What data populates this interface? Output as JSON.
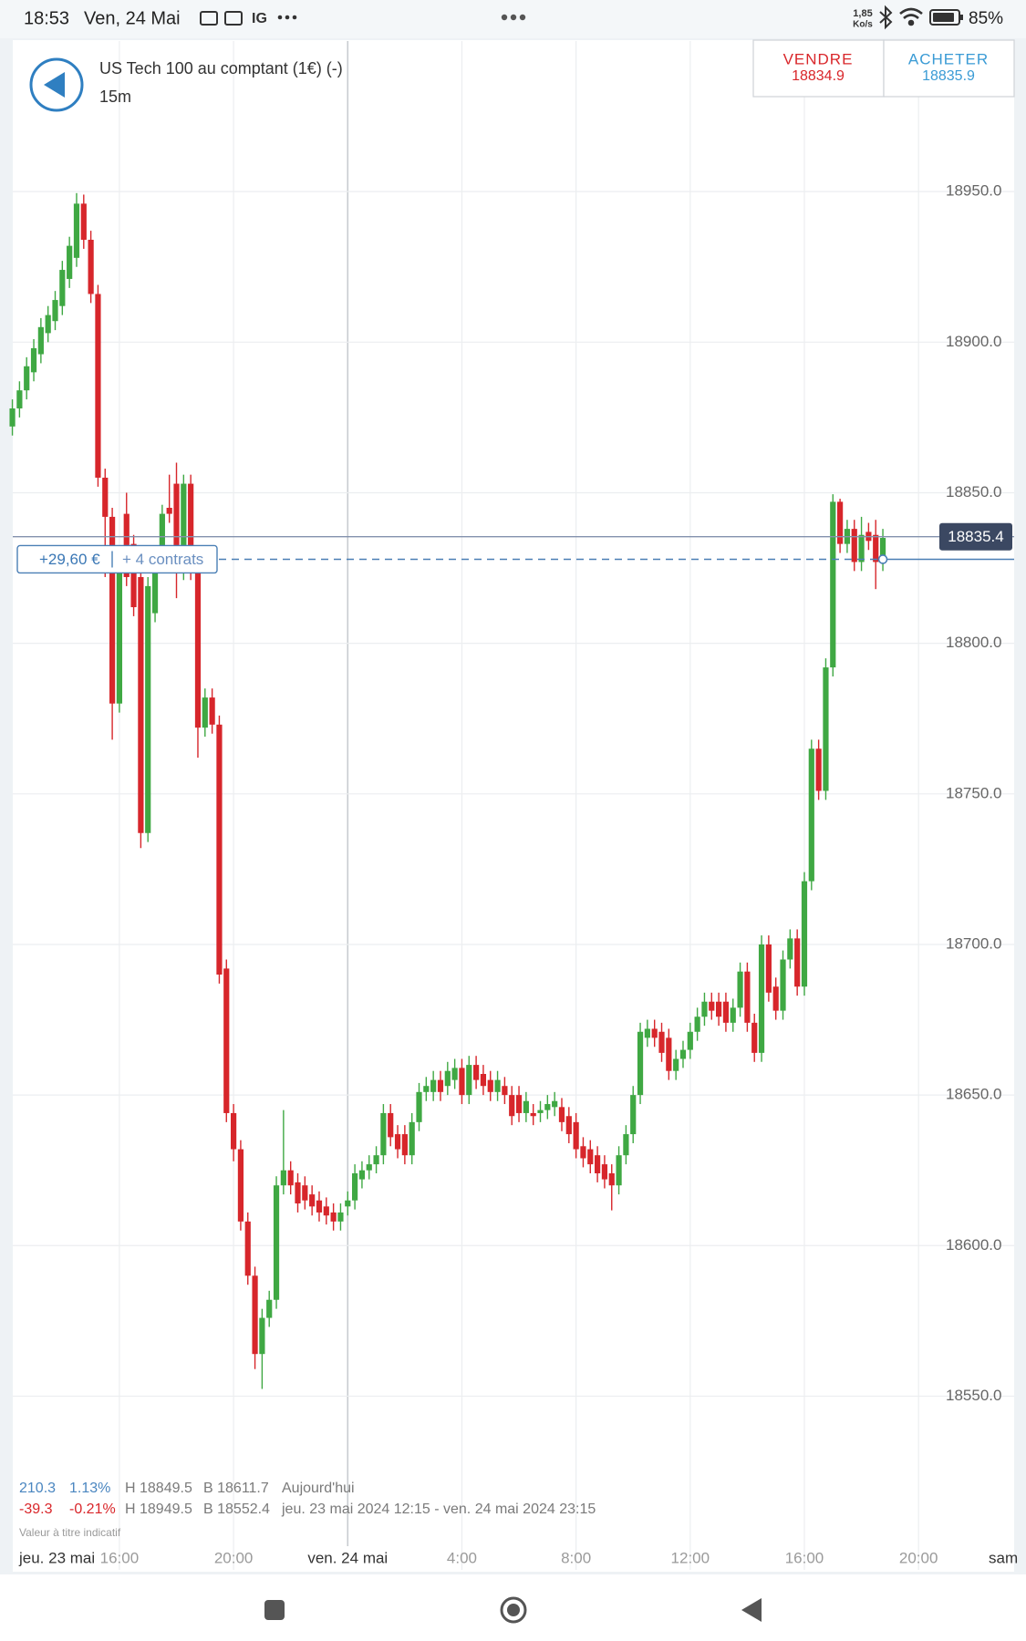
{
  "status_bar": {
    "time": "18:53",
    "date": "Ven, 24 Mai",
    "app": "IG",
    "speed": "1,85",
    "speed_unit": "Ko/s",
    "battery": "85%"
  },
  "header": {
    "instrument": "US Tech 100 au comptant (1€) (-)",
    "timeframe": "15m",
    "sell_label": "VENDRE",
    "sell_price": "18834.9",
    "buy_label": "ACHETER",
    "buy_price": "18835.9"
  },
  "chart_data": {
    "type": "candlestick",
    "up_color": "#3fa843",
    "down_color": "#d7262b",
    "grid": true,
    "xlim": [
      12.2,
      47.35
    ],
    "ylim": [
      18502,
      19000
    ],
    "date_label": "jeu. 23 mai",
    "xticks": [
      {
        "value": 16,
        "label": "16:00"
      },
      {
        "value": 20,
        "label": "20:00"
      },
      {
        "value": 24,
        "label": "ven. 24 mai"
      },
      {
        "value": 28,
        "label": "4:00"
      },
      {
        "value": 32,
        "label": "8:00"
      },
      {
        "value": 36,
        "label": "12:00"
      },
      {
        "value": 40,
        "label": "16:00"
      },
      {
        "value": 44,
        "label": "20:00"
      },
      {
        "value": 48,
        "label": "sam"
      }
    ],
    "yticks": [
      {
        "value": 18550,
        "label": "18550.0"
      },
      {
        "value": 18600,
        "label": "18600.0"
      },
      {
        "value": 18650,
        "label": "18650.0"
      },
      {
        "value": 18700,
        "label": "18700.0"
      },
      {
        "value": 18750,
        "label": "18750.0"
      },
      {
        "value": 18800,
        "label": "18800.0"
      },
      {
        "value": 18850,
        "label": "18850.0"
      },
      {
        "value": 18900,
        "label": "18900.0"
      },
      {
        "value": 18950,
        "label": "18950.0"
      }
    ],
    "x": [
      12.25,
      12.5,
      12.75,
      13,
      13.25,
      13.5,
      13.75,
      14,
      14.25,
      14.5,
      14.75,
      15,
      15.25,
      15.5,
      15.75,
      16,
      16.25,
      16.5,
      16.75,
      17,
      17.25,
      17.5,
      17.75,
      18,
      18.25,
      18.5,
      18.75,
      19,
      19.25,
      19.5,
      19.75,
      20,
      20.25,
      20.5,
      20.75,
      21,
      21.25,
      21.5,
      21.75,
      22,
      22.25,
      22.5,
      22.75,
      23,
      23.25,
      23.5,
      23.75,
      24,
      24.25,
      24.5,
      24.75,
      25,
      25.25,
      25.5,
      25.75,
      26,
      26.25,
      26.5,
      26.75,
      27,
      27.25,
      27.5,
      27.75,
      28,
      28.25,
      28.5,
      28.75,
      29,
      29.25,
      29.5,
      29.75,
      30,
      30.25,
      30.5,
      30.75,
      31,
      31.25,
      31.5,
      31.75,
      32,
      32.25,
      32.5,
      32.75,
      33,
      33.25,
      33.5,
      33.75,
      34,
      34.25,
      34.5,
      34.75,
      35,
      35.25,
      35.5,
      35.75,
      36,
      36.25,
      36.5,
      36.75,
      37,
      37.25,
      37.5,
      37.75,
      38,
      38.25,
      38.5,
      38.75,
      39,
      39.25,
      39.5,
      39.75,
      40,
      40.25,
      40.5,
      40.75,
      41,
      41.25,
      41.5,
      41.75,
      42,
      42.25,
      42.5,
      42.75
    ],
    "open": [
      18872,
      18878,
      18884,
      18890,
      18896,
      18903,
      18907,
      18912,
      18921,
      18928,
      18946,
      18934,
      18916,
      18855,
      18842,
      18780,
      18843,
      18833,
      18822,
      18737,
      18810,
      18829,
      18845,
      18853,
      18824,
      18853,
      18824,
      18772,
      18782,
      18773,
      18692,
      18644,
      18632,
      18608,
      18590,
      18564,
      18576,
      18582,
      18620,
      18625,
      18621,
      18620,
      18617,
      18615,
      18613,
      18611,
      18608,
      18613,
      18615,
      18622,
      18625,
      18627,
      18630,
      18644,
      18637,
      18637,
      18630,
      18641,
      18651,
      18651,
      18655,
      18653,
      18655,
      18659,
      18650,
      18660,
      18657,
      18655,
      18651,
      18653,
      18650,
      18650,
      18644,
      18644,
      18644,
      18645,
      18646,
      18646,
      18643,
      18641,
      18633,
      18632,
      18630,
      18627,
      18624,
      18620,
      18630,
      18637,
      18650,
      18669,
      18672,
      18671,
      18669,
      18658,
      18662,
      18665,
      18671,
      18676,
      18681,
      18681,
      18681,
      18674,
      18679,
      18691,
      18674,
      18664,
      18700,
      18686,
      18678,
      18695,
      18702,
      18686,
      18721,
      18765,
      18751,
      18792,
      18847,
      18833,
      18838,
      18827,
      18837,
      18836,
      18827
    ],
    "high": [
      18881,
      18887,
      18895,
      18901,
      18908,
      18912,
      18917,
      18927,
      18935,
      18949.5,
      18949,
      18937,
      18919,
      18858,
      18845,
      18829,
      18850,
      18836,
      18825,
      18822,
      18832,
      18846,
      18856,
      18860,
      18856,
      18856,
      18827,
      18785,
      18785,
      18776,
      18695,
      18647,
      18635,
      18611,
      18593,
      18579,
      18585,
      18623,
      18645,
      18628,
      18624,
      18623,
      18620,
      18618,
      18616,
      18614,
      18614,
      18618,
      18627,
      18628,
      18630,
      18633,
      18647,
      18647,
      18640,
      18640,
      18644,
      18654,
      18656,
      18658,
      18658,
      18661,
      18662,
      18662,
      18663,
      18663,
      18660,
      18658,
      18658,
      18656,
      18653,
      18653,
      18651,
      18647,
      18648,
      18650,
      18651,
      18649,
      18646,
      18644,
      18636,
      18635,
      18633,
      18630,
      18627,
      18633,
      18640,
      18653,
      18674,
      18675,
      18675,
      18674,
      18672,
      18665,
      18668,
      18674,
      18679,
      18684,
      18684,
      18684,
      18684,
      18682,
      18694,
      18694,
      18677,
      18703,
      18703,
      18689,
      18698,
      18705,
      18705,
      18724,
      18768,
      18768,
      18795,
      18849.5,
      18848,
      18841,
      18841,
      18842,
      18840,
      18841,
      18838
    ],
    "low": [
      18869,
      18875,
      18881,
      18887,
      18893,
      18900,
      18904,
      18909,
      18918,
      18925,
      18931,
      18913,
      18852,
      18822,
      18768,
      18777,
      18819,
      18809,
      18732,
      18734,
      18807,
      18826,
      18840,
      18815,
      18821,
      18821,
      18762,
      18769,
      18770,
      18687,
      18641,
      18628,
      18605,
      18587,
      18559,
      18552.4,
      18573,
      18579,
      18617,
      18617,
      18611,
      18612,
      18610,
      18608,
      18607,
      18605,
      18605,
      18610,
      18612,
      18619,
      18622,
      18624,
      18627,
      18633,
      18629,
      18627,
      18627,
      18638,
      18648,
      18648,
      18648,
      18650,
      18652,
      18647,
      18647,
      18652,
      18650,
      18648,
      18648,
      18647,
      18640,
      18641,
      18641,
      18640,
      18641,
      18642,
      18643,
      18638,
      18634,
      18629,
      18626,
      18624,
      18621,
      18619,
      18611.7,
      18617,
      18627,
      18634,
      18647,
      18666,
      18666,
      18661,
      18655,
      18655,
      18659,
      18662,
      18668,
      18673,
      18675,
      18673,
      18671,
      18671,
      18676,
      18671,
      18661,
      18661,
      18681,
      18675,
      18675,
      18692,
      18683,
      18683,
      18718,
      18748,
      18748,
      18789,
      18830,
      18830,
      18824,
      18824,
      18831,
      18818,
      18824
    ],
    "close": [
      18878,
      18884,
      18892,
      18898,
      18905,
      18909,
      18914,
      18924,
      18932,
      18946,
      18934,
      18916,
      18855,
      18842,
      18780,
      18826,
      18822,
      18812,
      18737,
      18819,
      18829,
      18843,
      18843,
      18824,
      18853,
      18824,
      18772,
      18782,
      18773,
      18690,
      18644,
      18632,
      18608,
      18590,
      18564,
      18576,
      18582,
      18620,
      18625,
      18620,
      18614,
      18615,
      18613,
      18611,
      18610,
      18608,
      18611,
      18615,
      18624,
      18625,
      18627,
      18630,
      18644,
      18636,
      18632,
      18630,
      18641,
      18651,
      18653,
      18655,
      18651,
      18658,
      18659,
      18650,
      18660,
      18655,
      18653,
      18651,
      18655,
      18650,
      18643,
      18644,
      18648,
      18643,
      18645,
      18647,
      18648,
      18641,
      18637,
      18632,
      18629,
      18627,
      18624,
      18622,
      18620,
      18630,
      18637,
      18650,
      18671,
      18672,
      18669,
      18664,
      18658,
      18662,
      18665,
      18671,
      18676,
      18681,
      18678,
      18676,
      18674,
      18679,
      18691,
      18674,
      18664,
      18700,
      18684,
      18678,
      18695,
      18702,
      18686,
      18721,
      18765,
      18751,
      18792,
      18847,
      18833,
      18838,
      18827,
      18836,
      18834,
      18827,
      18835
    ],
    "last_price": 18835.4,
    "position": {
      "level": 18827.9,
      "pnl": "+29,60 €",
      "size": "+ 4 contrats"
    }
  },
  "stats": {
    "rows": [
      [
        "210.3",
        "1.13%",
        "H 18849.5",
        "B 18611.7",
        "Aujourd'hui"
      ],
      [
        "-39.3",
        "-0.21%",
        "H 18949.5",
        "B 18552.4",
        "jeu. 23 mai 2024 12:15 - ven. 24 mai 2024 23:15"
      ]
    ],
    "note": "Valeur à titre indicatif"
  }
}
